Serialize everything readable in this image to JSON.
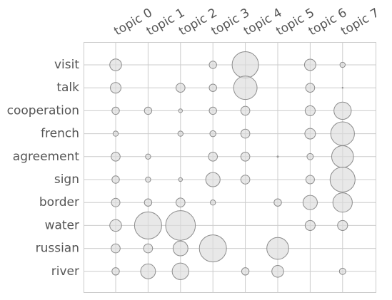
{
  "chart_data": {
    "type": "scatter",
    "style": "bubble matrix",
    "title": "",
    "xlabel": "",
    "ylabel": "",
    "x_categories": [
      "topic 0",
      "topic 1",
      "topic 2",
      "topic 3",
      "topic 4",
      "topic 5",
      "topic 6",
      "topic 7"
    ],
    "y_categories": [
      "visit",
      "talk",
      "cooperation",
      "french",
      "agreement",
      "sign",
      "border",
      "water",
      "russian",
      "river"
    ],
    "grid": true,
    "x_tick_position": "top",
    "x_tick_rotation_deg": -30,
    "bubble_fill": "#dcdcdc",
    "bubble_edge": "#8c8c8c",
    "grid_color": "#cccccc",
    "text_color": "#555555",
    "relative_weights": [
      {
        "word": "visit",
        "values": [
          0.076,
          0,
          0,
          0.03,
          0.38,
          0,
          0.07,
          0.015
        ]
      },
      {
        "word": "talk",
        "values": [
          0.062,
          0,
          0.044,
          0.03,
          0.3,
          0,
          0.044,
          0.0005
        ]
      },
      {
        "word": "cooperation",
        "values": [
          0.03,
          0.03,
          0.008,
          0.03,
          0.044,
          0,
          0.055,
          0.163
        ]
      },
      {
        "word": "french",
        "values": [
          0.015,
          0,
          0.015,
          0.02,
          0.044,
          0,
          0.062,
          0.305
        ]
      },
      {
        "word": "agreement",
        "values": [
          0.044,
          0.015,
          0,
          0.044,
          0.044,
          0.001,
          0.022,
          0.26
        ]
      },
      {
        "word": "sign",
        "values": [
          0.03,
          0.015,
          0.008,
          0.112,
          0.044,
          0,
          0.04,
          0.34
        ]
      },
      {
        "word": "border",
        "values": [
          0.04,
          0.03,
          0.044,
          0.015,
          0,
          0.03,
          0.112,
          0.205
        ]
      },
      {
        "word": "water",
        "values": [
          0.076,
          0.4,
          0.48,
          0,
          0,
          0,
          0.055,
          0.055
        ]
      },
      {
        "word": "russian",
        "values": [
          0.044,
          0.044,
          0.12,
          0.4,
          0,
          0.26,
          0,
          0
        ]
      },
      {
        "word": "river",
        "values": [
          0.03,
          0.12,
          0.15,
          0,
          0.03,
          0.076,
          0,
          0.022
        ]
      }
    ]
  }
}
